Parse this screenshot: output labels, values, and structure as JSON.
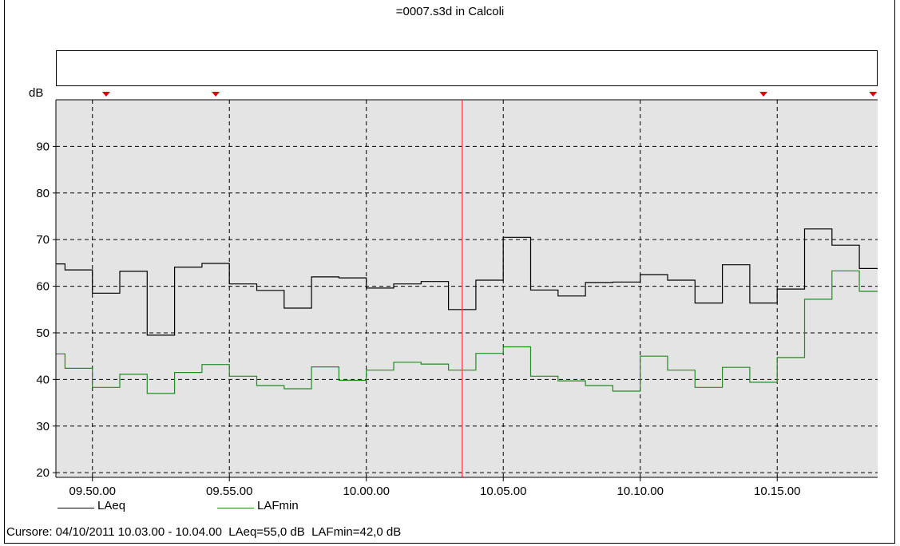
{
  "title": "=0007.s3d in Calcoli",
  "cursor_readout": "Cursore: 04/10/2011 10.03.00 - 10.04.00  LAeq=55,0 dB  LAFmin=42,0 dB",
  "colors": {
    "background": "#ffffff",
    "plot_area": "#e4e4e4",
    "grid": "#000000",
    "cursor_line": "#ff3b3b",
    "marker": "#e00000"
  },
  "chart_data": {
    "type": "line",
    "step": true,
    "ylabel": "dB",
    "xlabel": "",
    "ylim": [
      19,
      100
    ],
    "xlim": [
      "09.48.40",
      "10.18.40"
    ],
    "yticks": [
      20,
      30,
      40,
      50,
      60,
      70,
      80,
      90
    ],
    "xticks": [
      "09.50.00",
      "09.55.00",
      "10.00.00",
      "10.05.00",
      "10.10.00",
      "10.15.00"
    ],
    "grid": true,
    "legend_position": "bottom-left",
    "cursor": "10.03.30",
    "markers": [
      "09.50.30",
      "09.54.30",
      "10.14.30",
      "10.18.30"
    ],
    "x": [
      "09.48.40",
      "09.49.00",
      "09.50.00",
      "09.51.00",
      "09.52.00",
      "09.53.00",
      "09.54.00",
      "09.55.00",
      "09.56.00",
      "09.57.00",
      "09.58.00",
      "09.59.00",
      "10.00.00",
      "10.01.00",
      "10.02.00",
      "10.03.00",
      "10.04.00",
      "10.05.00",
      "10.06.00",
      "10.07.00",
      "10.08.00",
      "10.09.00",
      "10.10.00",
      "10.11.00",
      "10.12.00",
      "10.13.00",
      "10.14.00",
      "10.15.00",
      "10.16.00",
      "10.17.00",
      "10.18.00"
    ],
    "series": [
      {
        "name": "LAeq",
        "color": "#000000",
        "values": [
          64.8,
          63.5,
          58.5,
          63.2,
          49.5,
          64.1,
          64.9,
          60.5,
          59.1,
          55.3,
          62.0,
          61.8,
          59.6,
          60.5,
          61.0,
          55.0,
          61.3,
          70.5,
          59.2,
          57.9,
          60.8,
          60.9,
          62.5,
          61.3,
          56.4,
          64.6,
          56.4,
          59.4,
          72.3,
          68.8,
          63.8
        ]
      },
      {
        "name": "LAFmin",
        "color": "#228b22",
        "values": [
          45.5,
          42.4,
          38.3,
          41.1,
          37.0,
          41.5,
          43.2,
          40.7,
          38.7,
          38.0,
          42.7,
          39.8,
          42.0,
          43.7,
          43.3,
          42.0,
          45.6,
          47.0,
          40.7,
          39.7,
          38.7,
          37.5,
          45.0,
          42.0,
          38.3,
          42.6,
          39.4,
          44.7,
          57.2,
          63.3,
          58.9
        ]
      }
    ]
  }
}
